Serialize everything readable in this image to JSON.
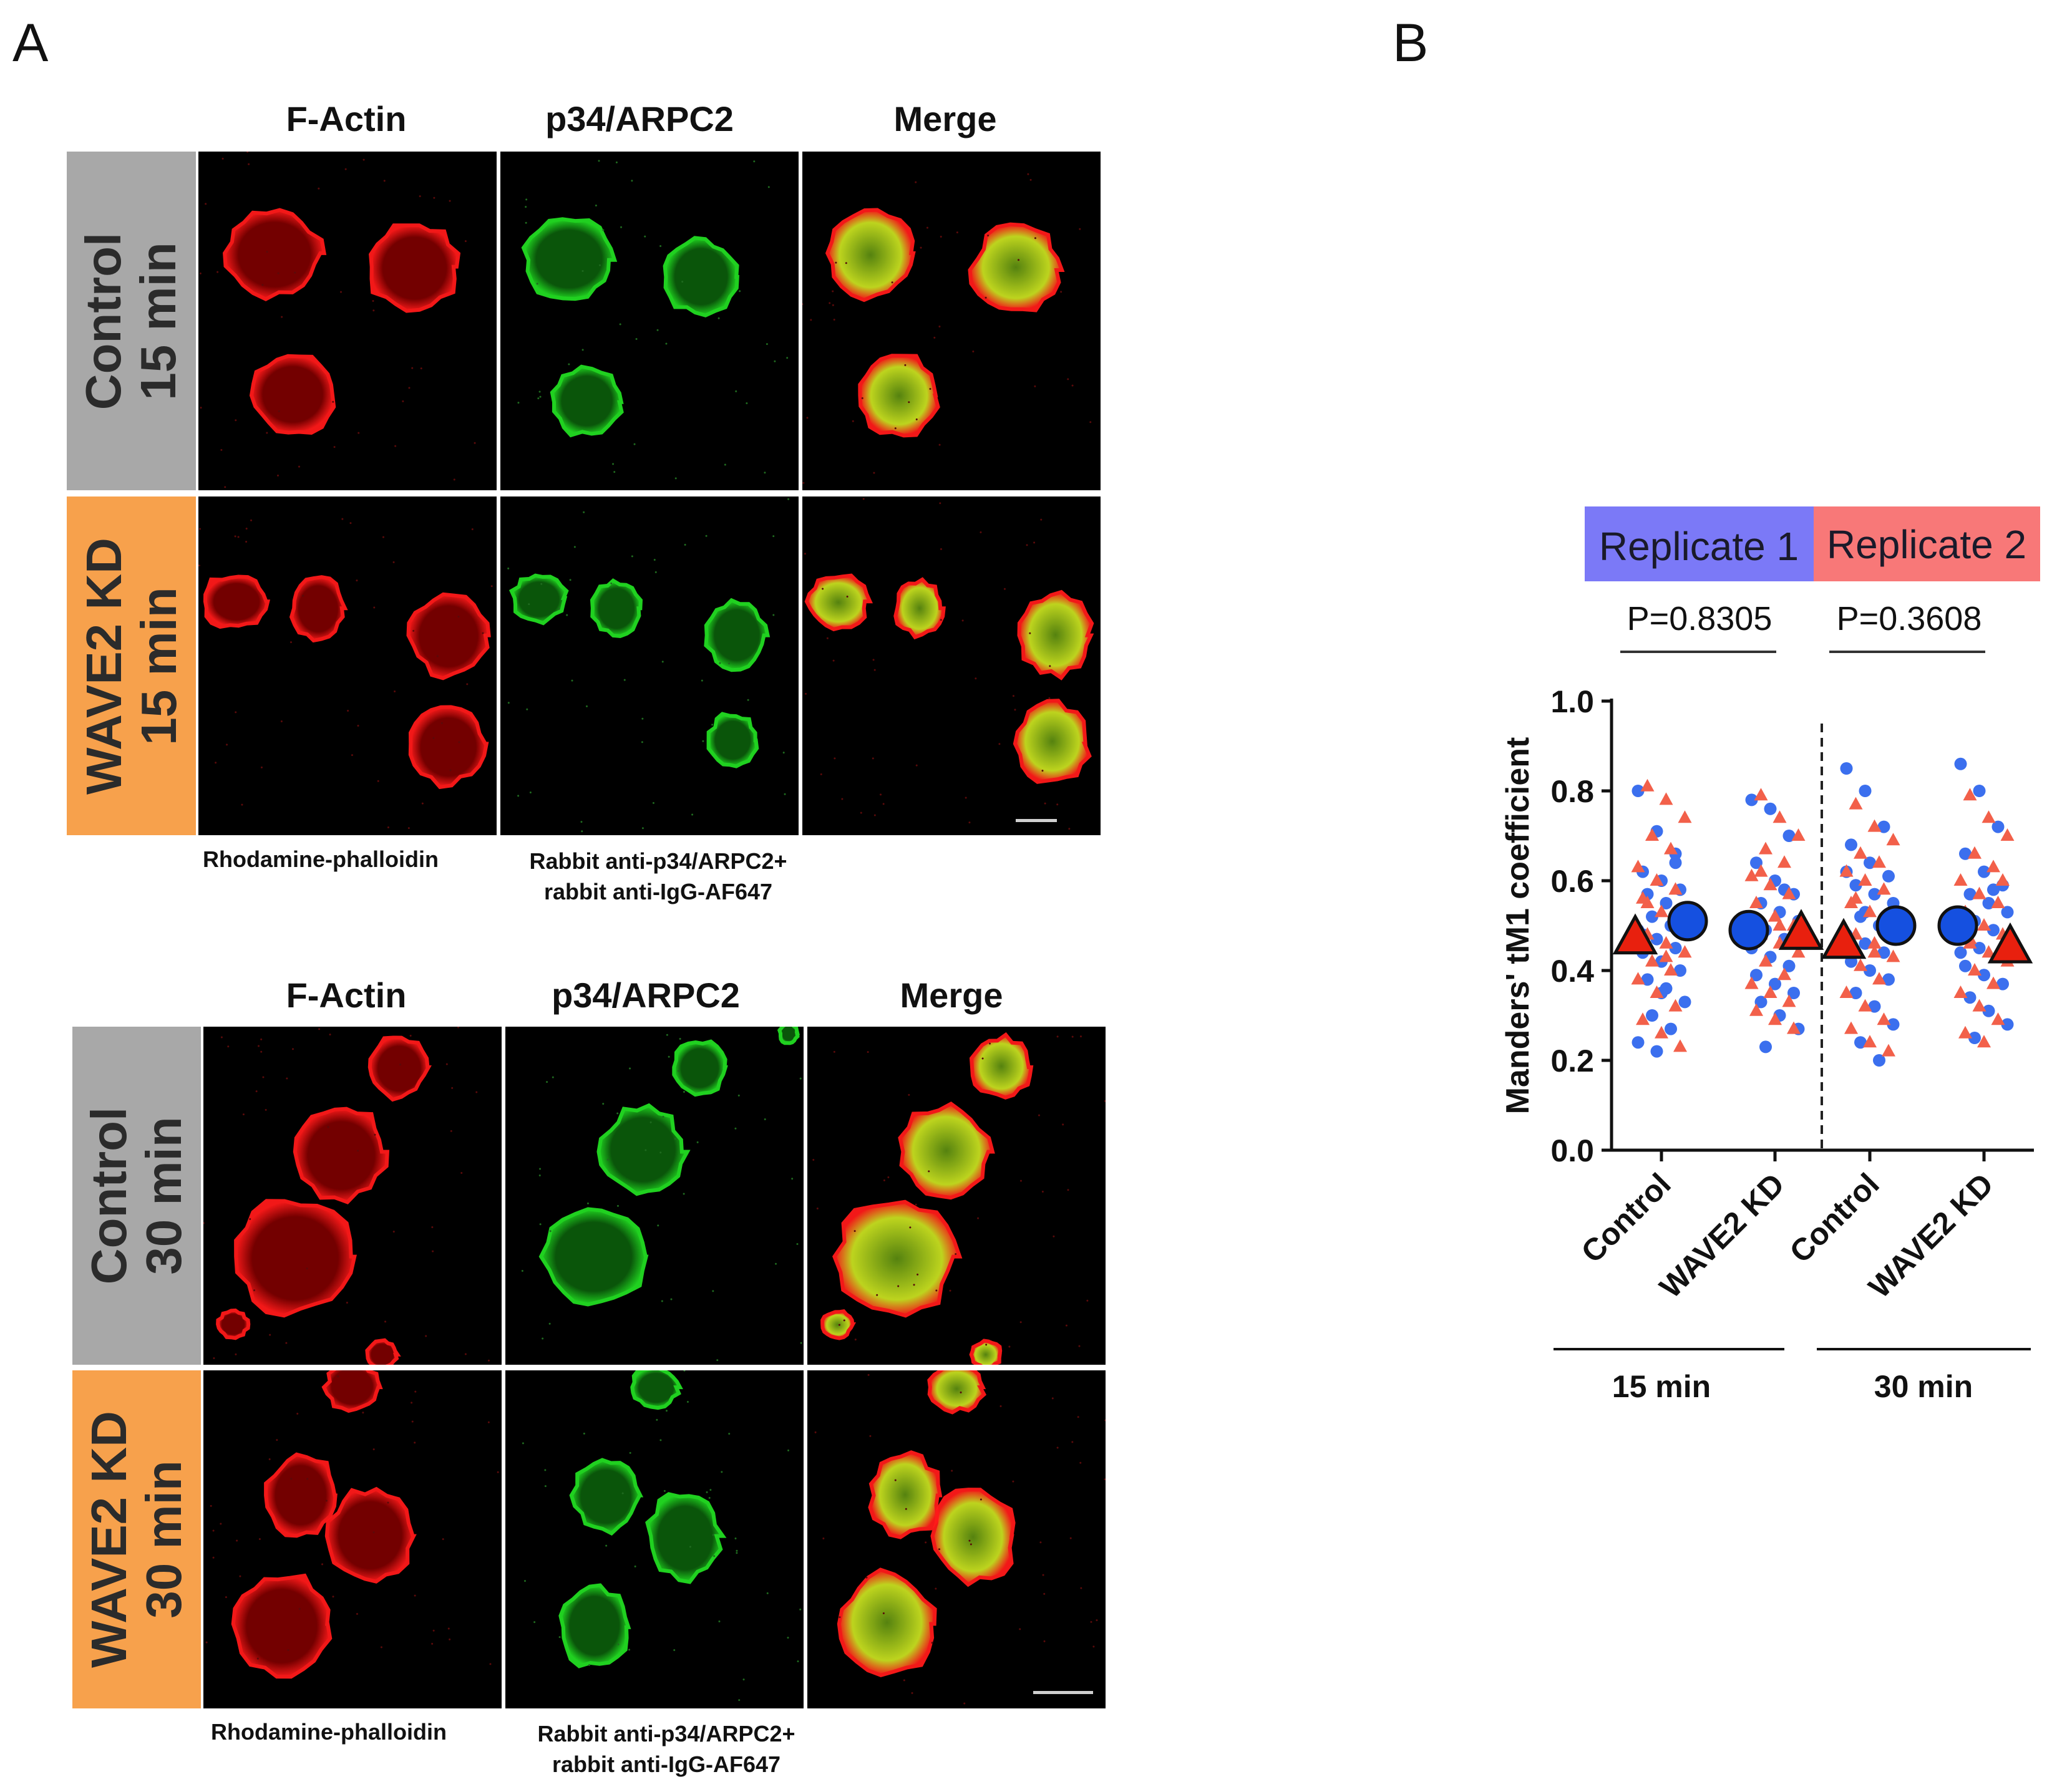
{
  "panel_a": {
    "letter": "A",
    "blocks": [
      {
        "columns": [
          "F-Actin",
          "p34/ARPC2",
          "Merge"
        ],
        "rows": [
          {
            "label": "Control\n15 min",
            "style": "grey"
          },
          {
            "label": "WAVE2 KD\n15 min",
            "style": "orange"
          }
        ],
        "caption_left": "Rhodamine-phalloidin",
        "caption_mid_1": "Rabbit anti-p34/ARPC2+",
        "caption_mid_2": "rabbit anti-IgG-AF647"
      },
      {
        "columns": [
          "F-Actin",
          "p34/ARPC2",
          "Merge"
        ],
        "rows": [
          {
            "label": "Control\n30 min",
            "style": "grey"
          },
          {
            "label": "WAVE2 KD\n30 min",
            "style": "orange"
          }
        ],
        "caption_left": "Rhodamine-phalloidin",
        "caption_mid_1": "Rabbit anti-p34/ARPC2+",
        "caption_mid_2": "rabbit anti-IgG-AF647"
      }
    ],
    "colors": {
      "actin": "#ff1a1a",
      "arpc2": "#22dd22",
      "merge_core": "#c8e020"
    }
  },
  "panel_b": {
    "letter": "B",
    "legend": [
      {
        "label": "Replicate 1",
        "color": "#7b79f7"
      },
      {
        "label": "Replicate 2",
        "color": "#f87878"
      }
    ],
    "comparisons": [
      {
        "label": "P=0.8305"
      },
      {
        "label": "P=0.3608"
      }
    ],
    "group_labels": [
      "15 min",
      "30 min"
    ]
  },
  "chart_data": {
    "type": "scatter",
    "title": "",
    "ylabel": "Manders' tM1 coefficient",
    "xlabel": "",
    "categories": [
      "Control",
      "WAVE2 KD",
      "Control",
      "WAVE2 KD"
    ],
    "groups": [
      "15 min",
      "15 min",
      "30 min",
      "30 min"
    ],
    "ylim": [
      0.0,
      1.0
    ],
    "yticks": [
      "0.0",
      "0.2",
      "0.4",
      "0.6",
      "0.8",
      "1.0"
    ],
    "series": [
      {
        "name": "Replicate 1",
        "marker": "circle",
        "color": "#3b6fee",
        "means": [
          0.51,
          0.49,
          0.5,
          0.5
        ],
        "points": [
          [
            0.8,
            0.71,
            0.66,
            0.62,
            0.6,
            0.58,
            0.57,
            0.55,
            0.54,
            0.52,
            0.5,
            0.49,
            0.47,
            0.45,
            0.44,
            0.42,
            0.4,
            0.38,
            0.36,
            0.33,
            0.3,
            0.27,
            0.24,
            0.22,
            0.64,
            0.48,
            0.35
          ],
          [
            0.78,
            0.76,
            0.7,
            0.64,
            0.6,
            0.57,
            0.55,
            0.53,
            0.51,
            0.49,
            0.47,
            0.45,
            0.43,
            0.41,
            0.39,
            0.37,
            0.35,
            0.33,
            0.3,
            0.27,
            0.23,
            0.58,
            0.46
          ],
          [
            0.85,
            0.8,
            0.72,
            0.68,
            0.64,
            0.61,
            0.59,
            0.57,
            0.55,
            0.52,
            0.5,
            0.48,
            0.46,
            0.44,
            0.42,
            0.4,
            0.38,
            0.35,
            0.32,
            0.28,
            0.24,
            0.2,
            0.62,
            0.53
          ],
          [
            0.86,
            0.8,
            0.72,
            0.66,
            0.62,
            0.59,
            0.57,
            0.55,
            0.53,
            0.51,
            0.49,
            0.47,
            0.45,
            0.43,
            0.41,
            0.39,
            0.37,
            0.34,
            0.31,
            0.28,
            0.25,
            0.58,
            0.44
          ]
        ]
      },
      {
        "name": "Replicate 2",
        "marker": "triangle",
        "color": "#f2604a",
        "means": [
          0.47,
          0.48,
          0.46,
          0.45
        ],
        "points": [
          [
            0.81,
            0.78,
            0.74,
            0.7,
            0.67,
            0.63,
            0.6,
            0.58,
            0.56,
            0.53,
            0.51,
            0.48,
            0.46,
            0.44,
            0.42,
            0.4,
            0.38,
            0.35,
            0.32,
            0.29,
            0.26,
            0.23,
            0.55,
            0.43
          ],
          [
            0.79,
            0.74,
            0.7,
            0.67,
            0.64,
            0.61,
            0.59,
            0.57,
            0.55,
            0.52,
            0.5,
            0.48,
            0.46,
            0.44,
            0.42,
            0.39,
            0.37,
            0.35,
            0.33,
            0.31,
            0.29,
            0.27,
            0.62,
            0.5
          ],
          [
            0.77,
            0.72,
            0.69,
            0.66,
            0.64,
            0.62,
            0.6,
            0.58,
            0.55,
            0.53,
            0.5,
            0.48,
            0.46,
            0.43,
            0.41,
            0.38,
            0.35,
            0.32,
            0.29,
            0.27,
            0.24,
            0.22,
            0.56,
            0.44
          ],
          [
            0.79,
            0.74,
            0.7,
            0.66,
            0.63,
            0.6,
            0.57,
            0.55,
            0.53,
            0.5,
            0.48,
            0.46,
            0.44,
            0.42,
            0.4,
            0.37,
            0.35,
            0.32,
            0.29,
            0.26,
            0.24,
            0.6,
            0.47
          ]
        ]
      }
    ]
  }
}
